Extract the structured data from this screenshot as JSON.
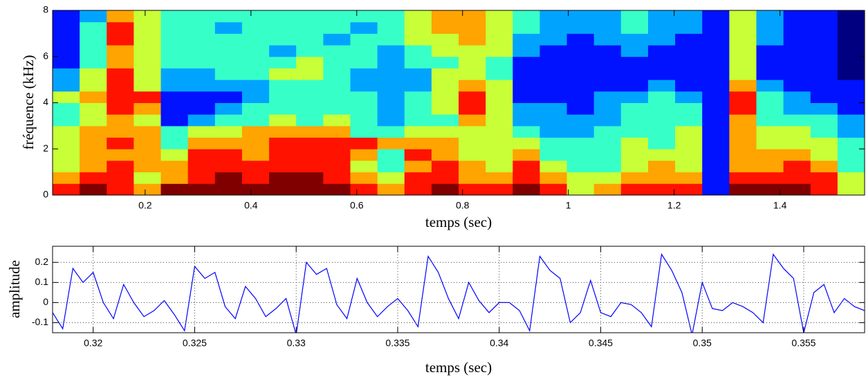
{
  "chart_data": [
    {
      "type": "heatmap",
      "xlabel": "temps (sec)",
      "ylabel": "fréquence (kHz)",
      "xlim": [
        0.025,
        1.56
      ],
      "ylim": [
        0,
        8
      ],
      "xticks": [
        0.2,
        0.4,
        0.6,
        0.8,
        1,
        1.2,
        1.4
      ],
      "yticks": [
        0,
        2,
        4,
        6,
        8
      ],
      "z": [
        [
          8,
          7,
          6,
          6,
          6,
          6,
          5,
          5,
          6,
          4,
          4,
          3,
          3,
          3,
          3,
          3
        ],
        [
          9,
          8,
          7,
          7,
          7,
          7,
          6,
          6,
          7,
          6,
          6,
          5,
          5,
          5,
          5,
          4
        ],
        [
          8,
          8,
          8,
          7,
          8,
          7,
          7,
          8,
          8,
          8,
          8,
          7,
          7,
          8,
          8,
          7
        ],
        [
          7,
          6,
          7,
          7,
          7,
          7,
          6,
          7,
          8,
          6,
          6,
          6,
          6,
          6,
          6,
          6
        ],
        [
          9,
          7,
          7,
          6,
          5,
          5,
          3,
          3,
          3,
          4,
          4,
          5,
          5,
          5,
          5,
          5
        ],
        [
          9,
          8,
          8,
          8,
          7,
          6,
          4,
          3,
          3,
          4,
          4,
          5,
          5,
          5,
          5,
          5
        ],
        [
          9,
          9,
          8,
          8,
          7,
          6,
          5,
          4,
          3,
          4,
          5,
          5,
          5,
          5,
          4,
          5
        ],
        [
          9,
          8,
          8,
          7,
          7,
          7,
          5,
          5,
          4,
          4,
          5,
          5,
          5,
          5,
          5,
          5
        ],
        [
          9,
          9,
          8,
          8,
          8,
          7,
          6,
          5,
          5,
          5,
          6,
          5,
          4,
          5,
          5,
          5
        ],
        [
          9,
          9,
          8,
          8,
          8,
          7,
          5,
          5,
          5,
          5,
          6,
          6,
          5,
          5,
          5,
          5
        ],
        [
          9,
          8,
          8,
          8,
          8,
          7,
          6,
          5,
          5,
          5,
          5,
          5,
          5,
          4,
          5,
          5
        ],
        [
          8,
          7,
          6,
          7,
          8,
          5,
          5,
          5,
          5,
          4,
          4,
          5,
          5,
          5,
          4,
          5
        ],
        [
          7,
          6,
          5,
          5,
          7,
          5,
          4,
          4,
          4,
          4,
          4,
          4,
          4,
          5,
          5,
          5
        ],
        [
          8,
          8,
          7,
          8,
          7,
          6,
          5,
          5,
          5,
          4,
          4,
          5,
          5,
          6,
          6,
          6
        ],
        [
          9,
          8,
          8,
          7,
          7,
          6,
          5,
          6,
          6,
          6,
          6,
          5,
          6,
          6,
          7,
          7
        ],
        [
          8,
          7,
          7,
          6,
          6,
          6,
          7,
          8,
          8,
          7,
          6,
          6,
          6,
          7,
          7,
          7
        ],
        [
          8,
          7,
          6,
          6,
          6,
          6,
          6,
          6,
          6,
          6,
          5,
          5,
          6,
          6,
          6,
          6
        ],
        [
          9,
          8,
          8,
          7,
          6,
          5,
          4,
          4,
          3,
          3,
          3,
          3,
          4,
          4,
          5,
          5
        ],
        [
          8,
          7,
          6,
          5,
          5,
          4,
          4,
          4,
          3,
          3,
          3,
          3,
          3,
          4,
          4,
          4
        ],
        [
          6,
          6,
          5,
          5,
          5,
          4,
          4,
          3,
          3,
          3,
          3,
          3,
          3,
          3,
          4,
          4
        ],
        [
          7,
          6,
          5,
          5,
          5,
          5,
          4,
          4,
          4,
          3,
          3,
          3,
          3,
          4,
          4,
          4
        ],
        [
          8,
          7,
          6,
          6,
          6,
          5,
          5,
          5,
          4,
          3,
          3,
          3,
          4,
          4,
          5,
          5
        ],
        [
          8,
          7,
          7,
          6,
          5,
          5,
          5,
          5,
          5,
          4,
          3,
          3,
          3,
          4,
          4,
          4
        ],
        [
          8,
          7,
          6,
          6,
          6,
          6,
          5,
          5,
          4,
          3,
          3,
          3,
          3,
          3,
          4,
          4
        ],
        [
          3,
          3,
          3,
          3,
          3,
          3,
          3,
          3,
          3,
          3,
          3,
          3,
          3,
          3,
          3,
          3
        ],
        [
          9,
          8,
          7,
          7,
          7,
          7,
          7,
          8,
          8,
          7,
          6,
          6,
          6,
          6,
          6,
          6
        ],
        [
          9,
          8,
          7,
          7,
          6,
          6,
          5,
          5,
          5,
          4,
          3,
          3,
          3,
          4,
          4,
          4
        ],
        [
          9,
          8,
          8,
          7,
          6,
          6,
          5,
          4,
          4,
          3,
          3,
          3,
          3,
          3,
          3,
          3
        ],
        [
          8,
          8,
          7,
          6,
          6,
          5,
          5,
          4,
          3,
          3,
          3,
          3,
          3,
          3,
          3,
          3
        ],
        [
          6,
          6,
          5,
          5,
          5,
          4,
          4,
          3,
          3,
          3,
          2,
          2,
          2,
          2,
          2,
          2
        ]
      ]
    },
    {
      "type": "line",
      "xlabel": "temps (sec)",
      "ylabel": "amplitude",
      "xlim": [
        0.318,
        0.358
      ],
      "ylim": [
        -0.15,
        0.28
      ],
      "xticks": [
        0.32,
        0.325,
        0.33,
        0.335,
        0.34,
        0.345,
        0.35,
        0.355
      ],
      "yticks": [
        -0.1,
        0,
        0.1,
        0.2
      ],
      "grid": true,
      "color": "#0000ff",
      "x": [
        0.318,
        0.3185,
        0.319,
        0.3195,
        0.32,
        0.3205,
        0.321,
        0.3215,
        0.322,
        0.3225,
        0.323,
        0.3235,
        0.324,
        0.3245,
        0.325,
        0.3255,
        0.326,
        0.3265,
        0.327,
        0.3275,
        0.328,
        0.3285,
        0.329,
        0.3295,
        0.33,
        0.3305,
        0.331,
        0.3315,
        0.332,
        0.3325,
        0.333,
        0.3335,
        0.334,
        0.3345,
        0.335,
        0.3355,
        0.336,
        0.3365,
        0.337,
        0.3375,
        0.338,
        0.3385,
        0.339,
        0.3395,
        0.34,
        0.3405,
        0.341,
        0.3415,
        0.342,
        0.3425,
        0.343,
        0.3435,
        0.344,
        0.3445,
        0.345,
        0.3455,
        0.346,
        0.3465,
        0.347,
        0.3475,
        0.348,
        0.3485,
        0.349,
        0.3495,
        0.35,
        0.3505,
        0.351,
        0.3515,
        0.352,
        0.3525,
        0.353,
        0.3535,
        0.354,
        0.3545,
        0.355,
        0.3555,
        0.356,
        0.3565,
        0.357,
        0.3575,
        0.358
      ],
      "values": [
        -0.05,
        -0.13,
        0.17,
        0.1,
        0.15,
        0.0,
        -0.08,
        0.09,
        0.0,
        -0.07,
        -0.04,
        0.01,
        -0.06,
        -0.14,
        0.18,
        0.12,
        0.15,
        -0.02,
        -0.08,
        0.08,
        0.02,
        -0.07,
        -0.03,
        0.02,
        -0.16,
        0.2,
        0.14,
        0.17,
        -0.01,
        -0.08,
        0.12,
        0.0,
        -0.07,
        -0.02,
        0.02,
        -0.04,
        -0.12,
        0.23,
        0.15,
        0.02,
        -0.08,
        0.1,
        0.01,
        -0.05,
        0.0,
        0.0,
        -0.04,
        -0.14,
        0.23,
        0.16,
        0.12,
        -0.1,
        -0.05,
        0.11,
        -0.05,
        -0.07,
        0.0,
        -0.01,
        -0.05,
        -0.12,
        0.24,
        0.16,
        0.05,
        -0.16,
        0.1,
        -0.03,
        -0.04,
        0.0,
        -0.02,
        -0.05,
        -0.1,
        0.24,
        0.17,
        0.12,
        -0.15,
        0.05,
        0.09,
        -0.05,
        0.02,
        -0.02,
        -0.04
      ]
    }
  ]
}
